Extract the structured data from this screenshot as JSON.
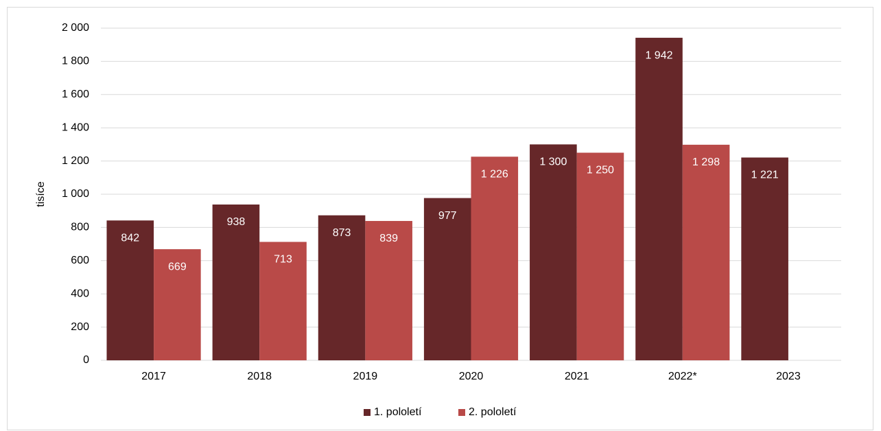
{
  "chart_data": {
    "type": "bar",
    "y_label": "tisíce",
    "categories": [
      "2017",
      "2018",
      "2019",
      "2020",
      "2021",
      "2022*",
      "2023"
    ],
    "series": [
      {
        "name": "1. pololetí",
        "color": "#662729",
        "values": [
          842,
          938,
          873,
          977,
          1300,
          1942,
          1221
        ],
        "value_labels": [
          "842",
          "938",
          "873",
          "977",
          "1 300",
          "1 942",
          "1 221"
        ]
      },
      {
        "name": "2. pololetí",
        "color": "#b94a48",
        "values": [
          669,
          713,
          839,
          1226,
          1250,
          1298,
          null
        ],
        "value_labels": [
          "669",
          "713",
          "839",
          "1 226",
          "1 250",
          "1 298",
          null
        ]
      }
    ],
    "ylim": [
      0,
      2000
    ],
    "yticks": [
      0,
      200,
      400,
      600,
      800,
      {
        "value": 1000,
        "label": "1 000"
      },
      {
        "value": 1200,
        "label": "1 200"
      },
      {
        "value": 1400,
        "label": "1 400"
      },
      {
        "value": 1600,
        "label": "1 600"
      },
      {
        "value": 1800,
        "label": "1 800"
      },
      {
        "value": 2000,
        "label": "2 000"
      }
    ],
    "grid": true,
    "legend": "bottom"
  }
}
